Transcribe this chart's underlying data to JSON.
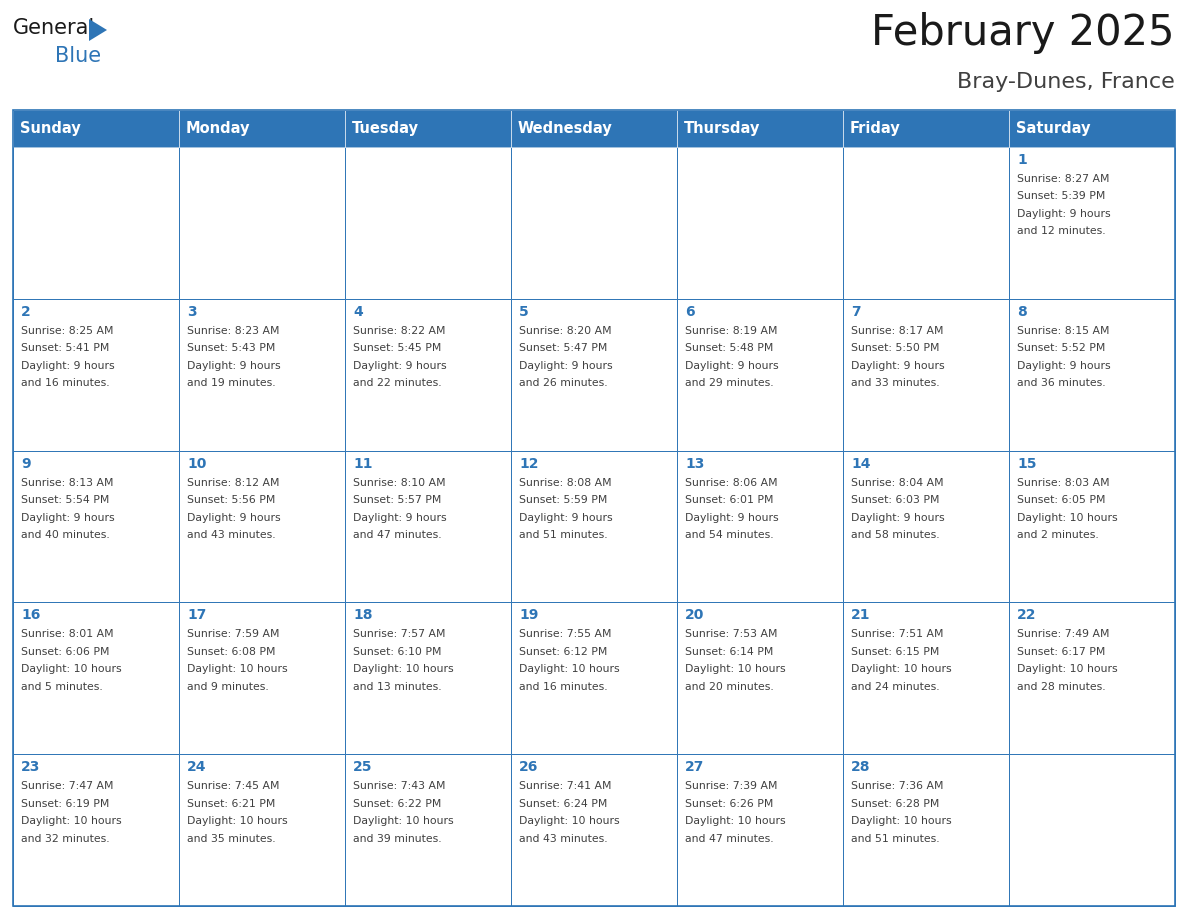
{
  "title": "February 2025",
  "subtitle": "Bray-Dunes, France",
  "days_of_week": [
    "Sunday",
    "Monday",
    "Tuesday",
    "Wednesday",
    "Thursday",
    "Friday",
    "Saturday"
  ],
  "header_bg": "#2E75B6",
  "header_text": "#FFFFFF",
  "cell_bg": "#FFFFFF",
  "border_color": "#2E75B6",
  "day_number_color": "#2E75B6",
  "info_text_color": "#404040",
  "title_color": "#1A1A1A",
  "subtitle_color": "#404040",
  "logo_general_color": "#1A1A1A",
  "logo_blue_color": "#2E75B6",
  "weeks": [
    [
      {
        "day": null,
        "info": ""
      },
      {
        "day": null,
        "info": ""
      },
      {
        "day": null,
        "info": ""
      },
      {
        "day": null,
        "info": ""
      },
      {
        "day": null,
        "info": ""
      },
      {
        "day": null,
        "info": ""
      },
      {
        "day": 1,
        "info": "Sunrise: 8:27 AM\nSunset: 5:39 PM\nDaylight: 9 hours\nand 12 minutes."
      }
    ],
    [
      {
        "day": 2,
        "info": "Sunrise: 8:25 AM\nSunset: 5:41 PM\nDaylight: 9 hours\nand 16 minutes."
      },
      {
        "day": 3,
        "info": "Sunrise: 8:23 AM\nSunset: 5:43 PM\nDaylight: 9 hours\nand 19 minutes."
      },
      {
        "day": 4,
        "info": "Sunrise: 8:22 AM\nSunset: 5:45 PM\nDaylight: 9 hours\nand 22 minutes."
      },
      {
        "day": 5,
        "info": "Sunrise: 8:20 AM\nSunset: 5:47 PM\nDaylight: 9 hours\nand 26 minutes."
      },
      {
        "day": 6,
        "info": "Sunrise: 8:19 AM\nSunset: 5:48 PM\nDaylight: 9 hours\nand 29 minutes."
      },
      {
        "day": 7,
        "info": "Sunrise: 8:17 AM\nSunset: 5:50 PM\nDaylight: 9 hours\nand 33 minutes."
      },
      {
        "day": 8,
        "info": "Sunrise: 8:15 AM\nSunset: 5:52 PM\nDaylight: 9 hours\nand 36 minutes."
      }
    ],
    [
      {
        "day": 9,
        "info": "Sunrise: 8:13 AM\nSunset: 5:54 PM\nDaylight: 9 hours\nand 40 minutes."
      },
      {
        "day": 10,
        "info": "Sunrise: 8:12 AM\nSunset: 5:56 PM\nDaylight: 9 hours\nand 43 minutes."
      },
      {
        "day": 11,
        "info": "Sunrise: 8:10 AM\nSunset: 5:57 PM\nDaylight: 9 hours\nand 47 minutes."
      },
      {
        "day": 12,
        "info": "Sunrise: 8:08 AM\nSunset: 5:59 PM\nDaylight: 9 hours\nand 51 minutes."
      },
      {
        "day": 13,
        "info": "Sunrise: 8:06 AM\nSunset: 6:01 PM\nDaylight: 9 hours\nand 54 minutes."
      },
      {
        "day": 14,
        "info": "Sunrise: 8:04 AM\nSunset: 6:03 PM\nDaylight: 9 hours\nand 58 minutes."
      },
      {
        "day": 15,
        "info": "Sunrise: 8:03 AM\nSunset: 6:05 PM\nDaylight: 10 hours\nand 2 minutes."
      }
    ],
    [
      {
        "day": 16,
        "info": "Sunrise: 8:01 AM\nSunset: 6:06 PM\nDaylight: 10 hours\nand 5 minutes."
      },
      {
        "day": 17,
        "info": "Sunrise: 7:59 AM\nSunset: 6:08 PM\nDaylight: 10 hours\nand 9 minutes."
      },
      {
        "day": 18,
        "info": "Sunrise: 7:57 AM\nSunset: 6:10 PM\nDaylight: 10 hours\nand 13 minutes."
      },
      {
        "day": 19,
        "info": "Sunrise: 7:55 AM\nSunset: 6:12 PM\nDaylight: 10 hours\nand 16 minutes."
      },
      {
        "day": 20,
        "info": "Sunrise: 7:53 AM\nSunset: 6:14 PM\nDaylight: 10 hours\nand 20 minutes."
      },
      {
        "day": 21,
        "info": "Sunrise: 7:51 AM\nSunset: 6:15 PM\nDaylight: 10 hours\nand 24 minutes."
      },
      {
        "day": 22,
        "info": "Sunrise: 7:49 AM\nSunset: 6:17 PM\nDaylight: 10 hours\nand 28 minutes."
      }
    ],
    [
      {
        "day": 23,
        "info": "Sunrise: 7:47 AM\nSunset: 6:19 PM\nDaylight: 10 hours\nand 32 minutes."
      },
      {
        "day": 24,
        "info": "Sunrise: 7:45 AM\nSunset: 6:21 PM\nDaylight: 10 hours\nand 35 minutes."
      },
      {
        "day": 25,
        "info": "Sunrise: 7:43 AM\nSunset: 6:22 PM\nDaylight: 10 hours\nand 39 minutes."
      },
      {
        "day": 26,
        "info": "Sunrise: 7:41 AM\nSunset: 6:24 PM\nDaylight: 10 hours\nand 43 minutes."
      },
      {
        "day": 27,
        "info": "Sunrise: 7:39 AM\nSunset: 6:26 PM\nDaylight: 10 hours\nand 47 minutes."
      },
      {
        "day": 28,
        "info": "Sunrise: 7:36 AM\nSunset: 6:28 PM\nDaylight: 10 hours\nand 51 minutes."
      },
      {
        "day": null,
        "info": ""
      }
    ]
  ],
  "figwidth": 11.88,
  "figheight": 9.18,
  "dpi": 100
}
